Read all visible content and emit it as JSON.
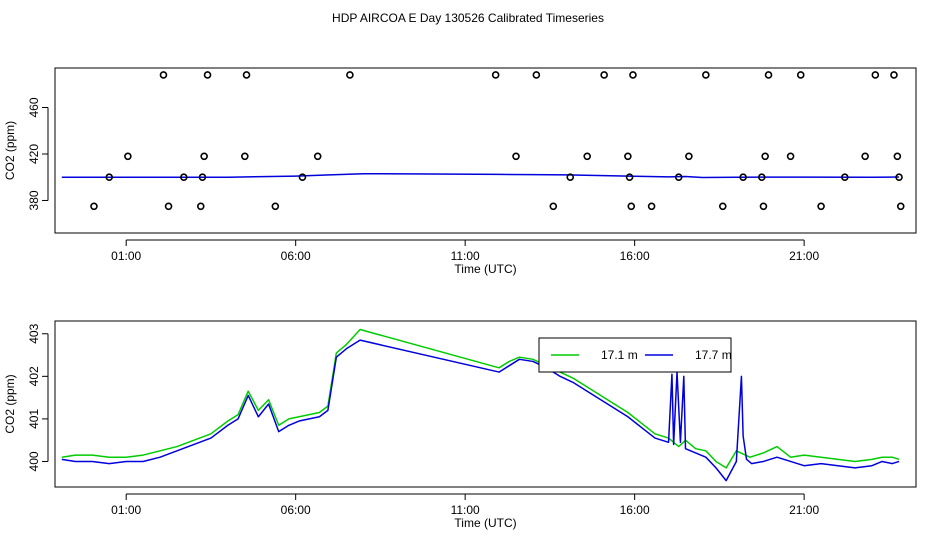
{
  "title": "HDP AIRCOA E  Day 130526  Calibrated Timeseries",
  "colors": {
    "green": "#00cc00",
    "blue": "#0000dd",
    "axis": "#000000"
  },
  "chart_data": [
    {
      "type": "scatter",
      "xlabel": "Time (UTC)",
      "ylabel": "CO2 (ppm)",
      "xlim": [
        -1.1,
        24.3
      ],
      "ylim": [
        352,
        494
      ],
      "x_ticks": [
        1,
        6,
        11,
        16,
        21
      ],
      "x_tick_labels": [
        "01:00",
        "06:00",
        "11:00",
        "16:00",
        "21:00"
      ],
      "y_ticks": [
        380,
        420,
        460
      ],
      "y_tick_labels": [
        "380",
        "420",
        "460"
      ],
      "points": [
        {
          "x": 0.05,
          "y": 375
        },
        {
          "x": 0.5,
          "y": 400
        },
        {
          "x": 1.05,
          "y": 418
        },
        {
          "x": 2.1,
          "y": 488
        },
        {
          "x": 2.25,
          "y": 375
        },
        {
          "x": 2.7,
          "y": 400
        },
        {
          "x": 3.2,
          "y": 375
        },
        {
          "x": 3.25,
          "y": 400
        },
        {
          "x": 3.3,
          "y": 418
        },
        {
          "x": 3.4,
          "y": 488
        },
        {
          "x": 4.5,
          "y": 418
        },
        {
          "x": 4.55,
          "y": 488
        },
        {
          "x": 5.4,
          "y": 375
        },
        {
          "x": 6.2,
          "y": 400
        },
        {
          "x": 6.65,
          "y": 418
        },
        {
          "x": 7.6,
          "y": 488
        },
        {
          "x": 11.9,
          "y": 488
        },
        {
          "x": 12.5,
          "y": 418
        },
        {
          "x": 13.1,
          "y": 488
        },
        {
          "x": 13.6,
          "y": 375
        },
        {
          "x": 14.1,
          "y": 400
        },
        {
          "x": 14.6,
          "y": 418
        },
        {
          "x": 15.1,
          "y": 488
        },
        {
          "x": 15.8,
          "y": 418
        },
        {
          "x": 15.85,
          "y": 400
        },
        {
          "x": 15.9,
          "y": 375
        },
        {
          "x": 15.95,
          "y": 488
        },
        {
          "x": 16.5,
          "y": 375
        },
        {
          "x": 17.3,
          "y": 400
        },
        {
          "x": 17.6,
          "y": 418
        },
        {
          "x": 18.1,
          "y": 488
        },
        {
          "x": 18.6,
          "y": 375
        },
        {
          "x": 19.2,
          "y": 400
        },
        {
          "x": 19.75,
          "y": 400
        },
        {
          "x": 19.8,
          "y": 375
        },
        {
          "x": 19.85,
          "y": 418
        },
        {
          "x": 19.95,
          "y": 488
        },
        {
          "x": 20.6,
          "y": 418
        },
        {
          "x": 20.9,
          "y": 488
        },
        {
          "x": 21.5,
          "y": 375
        },
        {
          "x": 22.2,
          "y": 400
        },
        {
          "x": 22.8,
          "y": 418
        },
        {
          "x": 23.1,
          "y": 488
        },
        {
          "x": 23.65,
          "y": 488
        },
        {
          "x": 23.75,
          "y": 418
        },
        {
          "x": 23.8,
          "y": 400
        },
        {
          "x": 23.85,
          "y": 375
        }
      ],
      "line": {
        "x": [
          -0.9,
          2,
          4,
          6,
          7,
          8,
          10,
          12,
          13,
          14,
          16,
          17,
          17.5,
          18,
          19,
          21,
          23,
          23.8
        ],
        "y": [
          400,
          400,
          400,
          401,
          402,
          403,
          402.8,
          402.4,
          402.2,
          402,
          400.8,
          400.3,
          400.6,
          399.8,
          400,
          400.1,
          400,
          400.2
        ]
      }
    },
    {
      "type": "line",
      "xlabel": "Time (UTC)",
      "ylabel": "CO2 (ppm)",
      "xlim": [
        -1.1,
        24.3
      ],
      "ylim": [
        399.4,
        403.3
      ],
      "x_ticks": [
        1,
        6,
        11,
        16,
        21
      ],
      "x_tick_labels": [
        "01:00",
        "06:00",
        "11:00",
        "16:00",
        "21:00"
      ],
      "y_ticks": [
        400,
        401,
        402,
        403
      ],
      "y_tick_labels": [
        "400",
        "401",
        "402",
        "403"
      ],
      "legend": {
        "position": "top-right"
      },
      "series": [
        {
          "name": "17.1 m",
          "color": "#00cc00",
          "x": [
            -0.9,
            -0.5,
            0,
            0.5,
            1,
            1.5,
            2,
            2.5,
            3,
            3.5,
            4,
            4.3,
            4.6,
            4.9,
            5.2,
            5.5,
            5.8,
            6.1,
            6.4,
            6.7,
            6.95,
            7.2,
            7.5,
            7.9,
            12,
            12.3,
            12.6,
            13,
            13.4,
            13.8,
            14.2,
            14.6,
            15,
            15.4,
            15.8,
            16.2,
            16.6,
            17,
            17.3,
            17.5,
            17.8,
            18.1,
            18.4,
            18.7,
            19,
            19.4,
            19.8,
            20.2,
            20.6,
            21,
            21.5,
            22,
            22.5,
            23,
            23.3,
            23.6,
            23.8
          ],
          "y": [
            400.1,
            400.15,
            400.15,
            400.1,
            400.1,
            400.15,
            400.25,
            400.35,
            400.5,
            400.65,
            400.95,
            401.1,
            401.65,
            401.2,
            401.45,
            400.85,
            401.0,
            401.05,
            401.1,
            401.15,
            401.3,
            402.55,
            402.75,
            403.1,
            402.2,
            402.35,
            402.45,
            402.4,
            402.25,
            402.1,
            401.95,
            401.75,
            401.55,
            401.35,
            401.15,
            400.9,
            400.65,
            400.55,
            400.35,
            400.5,
            400.3,
            400.25,
            400.0,
            399.85,
            400.25,
            400.1,
            400.2,
            400.35,
            400.1,
            400.15,
            400.1,
            400.05,
            400.0,
            400.05,
            400.1,
            400.1,
            400.05
          ]
        },
        {
          "name": "17.7 m",
          "color": "#0000dd",
          "x": [
            -0.9,
            -0.5,
            0,
            0.5,
            1,
            1.5,
            2,
            2.5,
            3,
            3.5,
            4,
            4.3,
            4.6,
            4.9,
            5.2,
            5.5,
            5.8,
            6.1,
            6.4,
            6.7,
            6.95,
            7.2,
            7.5,
            7.9,
            12,
            12.3,
            12.6,
            13,
            13.4,
            13.8,
            14.2,
            14.6,
            15,
            15.4,
            15.8,
            16.2,
            16.6,
            17,
            17.1,
            17.15,
            17.25,
            17.35,
            17.45,
            17.5,
            17.8,
            18.1,
            18.4,
            18.7,
            19,
            19.15,
            19.2,
            19.3,
            19.45,
            19.8,
            20.2,
            20.6,
            21,
            21.5,
            22,
            22.5,
            23,
            23.3,
            23.6,
            23.8
          ],
          "y": [
            400.05,
            400.0,
            400.0,
            399.95,
            400.0,
            400.0,
            400.1,
            400.25,
            400.4,
            400.55,
            400.85,
            401.0,
            401.55,
            401.05,
            401.35,
            400.7,
            400.85,
            400.95,
            401.0,
            401.05,
            401.2,
            402.45,
            402.65,
            402.85,
            402.1,
            402.25,
            402.4,
            402.35,
            402.2,
            402.0,
            401.85,
            401.65,
            401.45,
            401.25,
            401.05,
            400.8,
            400.55,
            400.45,
            402.05,
            400.4,
            402.1,
            400.45,
            402.0,
            400.3,
            400.2,
            400.1,
            399.85,
            399.55,
            400.0,
            402.0,
            400.6,
            400.05,
            399.95,
            400.0,
            400.1,
            400.0,
            399.9,
            399.95,
            399.9,
            399.85,
            399.9,
            400.0,
            399.95,
            400.0
          ]
        }
      ]
    }
  ]
}
